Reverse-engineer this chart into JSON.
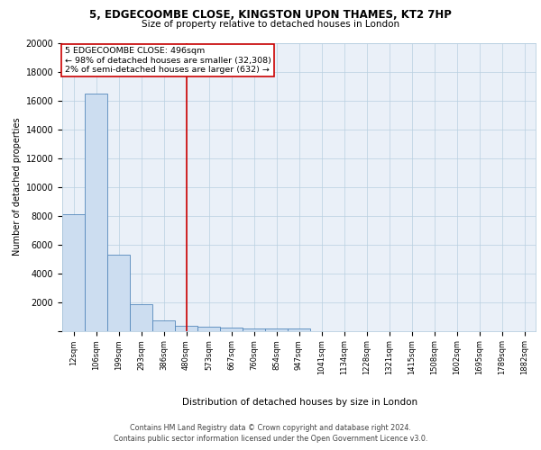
{
  "title1": "5, EDGECOOMBE CLOSE, KINGSTON UPON THAMES, KT2 7HP",
  "title2": "Size of property relative to detached houses in London",
  "xlabel": "Distribution of detached houses by size in London",
  "ylabel": "Number of detached properties",
  "bin_labels": [
    "12sqm",
    "106sqm",
    "199sqm",
    "293sqm",
    "386sqm",
    "480sqm",
    "573sqm",
    "667sqm",
    "760sqm",
    "854sqm",
    "947sqm",
    "1041sqm",
    "1134sqm",
    "1228sqm",
    "1321sqm",
    "1415sqm",
    "1508sqm",
    "1602sqm",
    "1695sqm",
    "1789sqm",
    "1882sqm"
  ],
  "bar_heights": [
    8100,
    16500,
    5300,
    1850,
    700,
    350,
    280,
    220,
    175,
    155,
    135,
    0,
    0,
    0,
    0,
    0,
    0,
    0,
    0,
    0,
    0
  ],
  "bar_color": "#ccddf0",
  "bar_edge_color": "#5588bb",
  "vline_x": 5.52,
  "vline_color": "#cc0000",
  "annotation_line1": "5 EDGECOOMBE CLOSE: 496sqm",
  "annotation_line2": "← 98% of detached houses are smaller (32,308)",
  "annotation_line3": "2% of semi-detached houses are larger (632) →",
  "annotation_box_color": "#ffffff",
  "annotation_box_edge": "#cc0000",
  "footer": "Contains HM Land Registry data © Crown copyright and database right 2024.\nContains public sector information licensed under the Open Government Licence v3.0.",
  "ylim": [
    0,
    20000
  ],
  "yticks": [
    0,
    2000,
    4000,
    6000,
    8000,
    10000,
    12000,
    14000,
    16000,
    18000,
    20000
  ],
  "plot_bg_color": "#eaf0f8"
}
